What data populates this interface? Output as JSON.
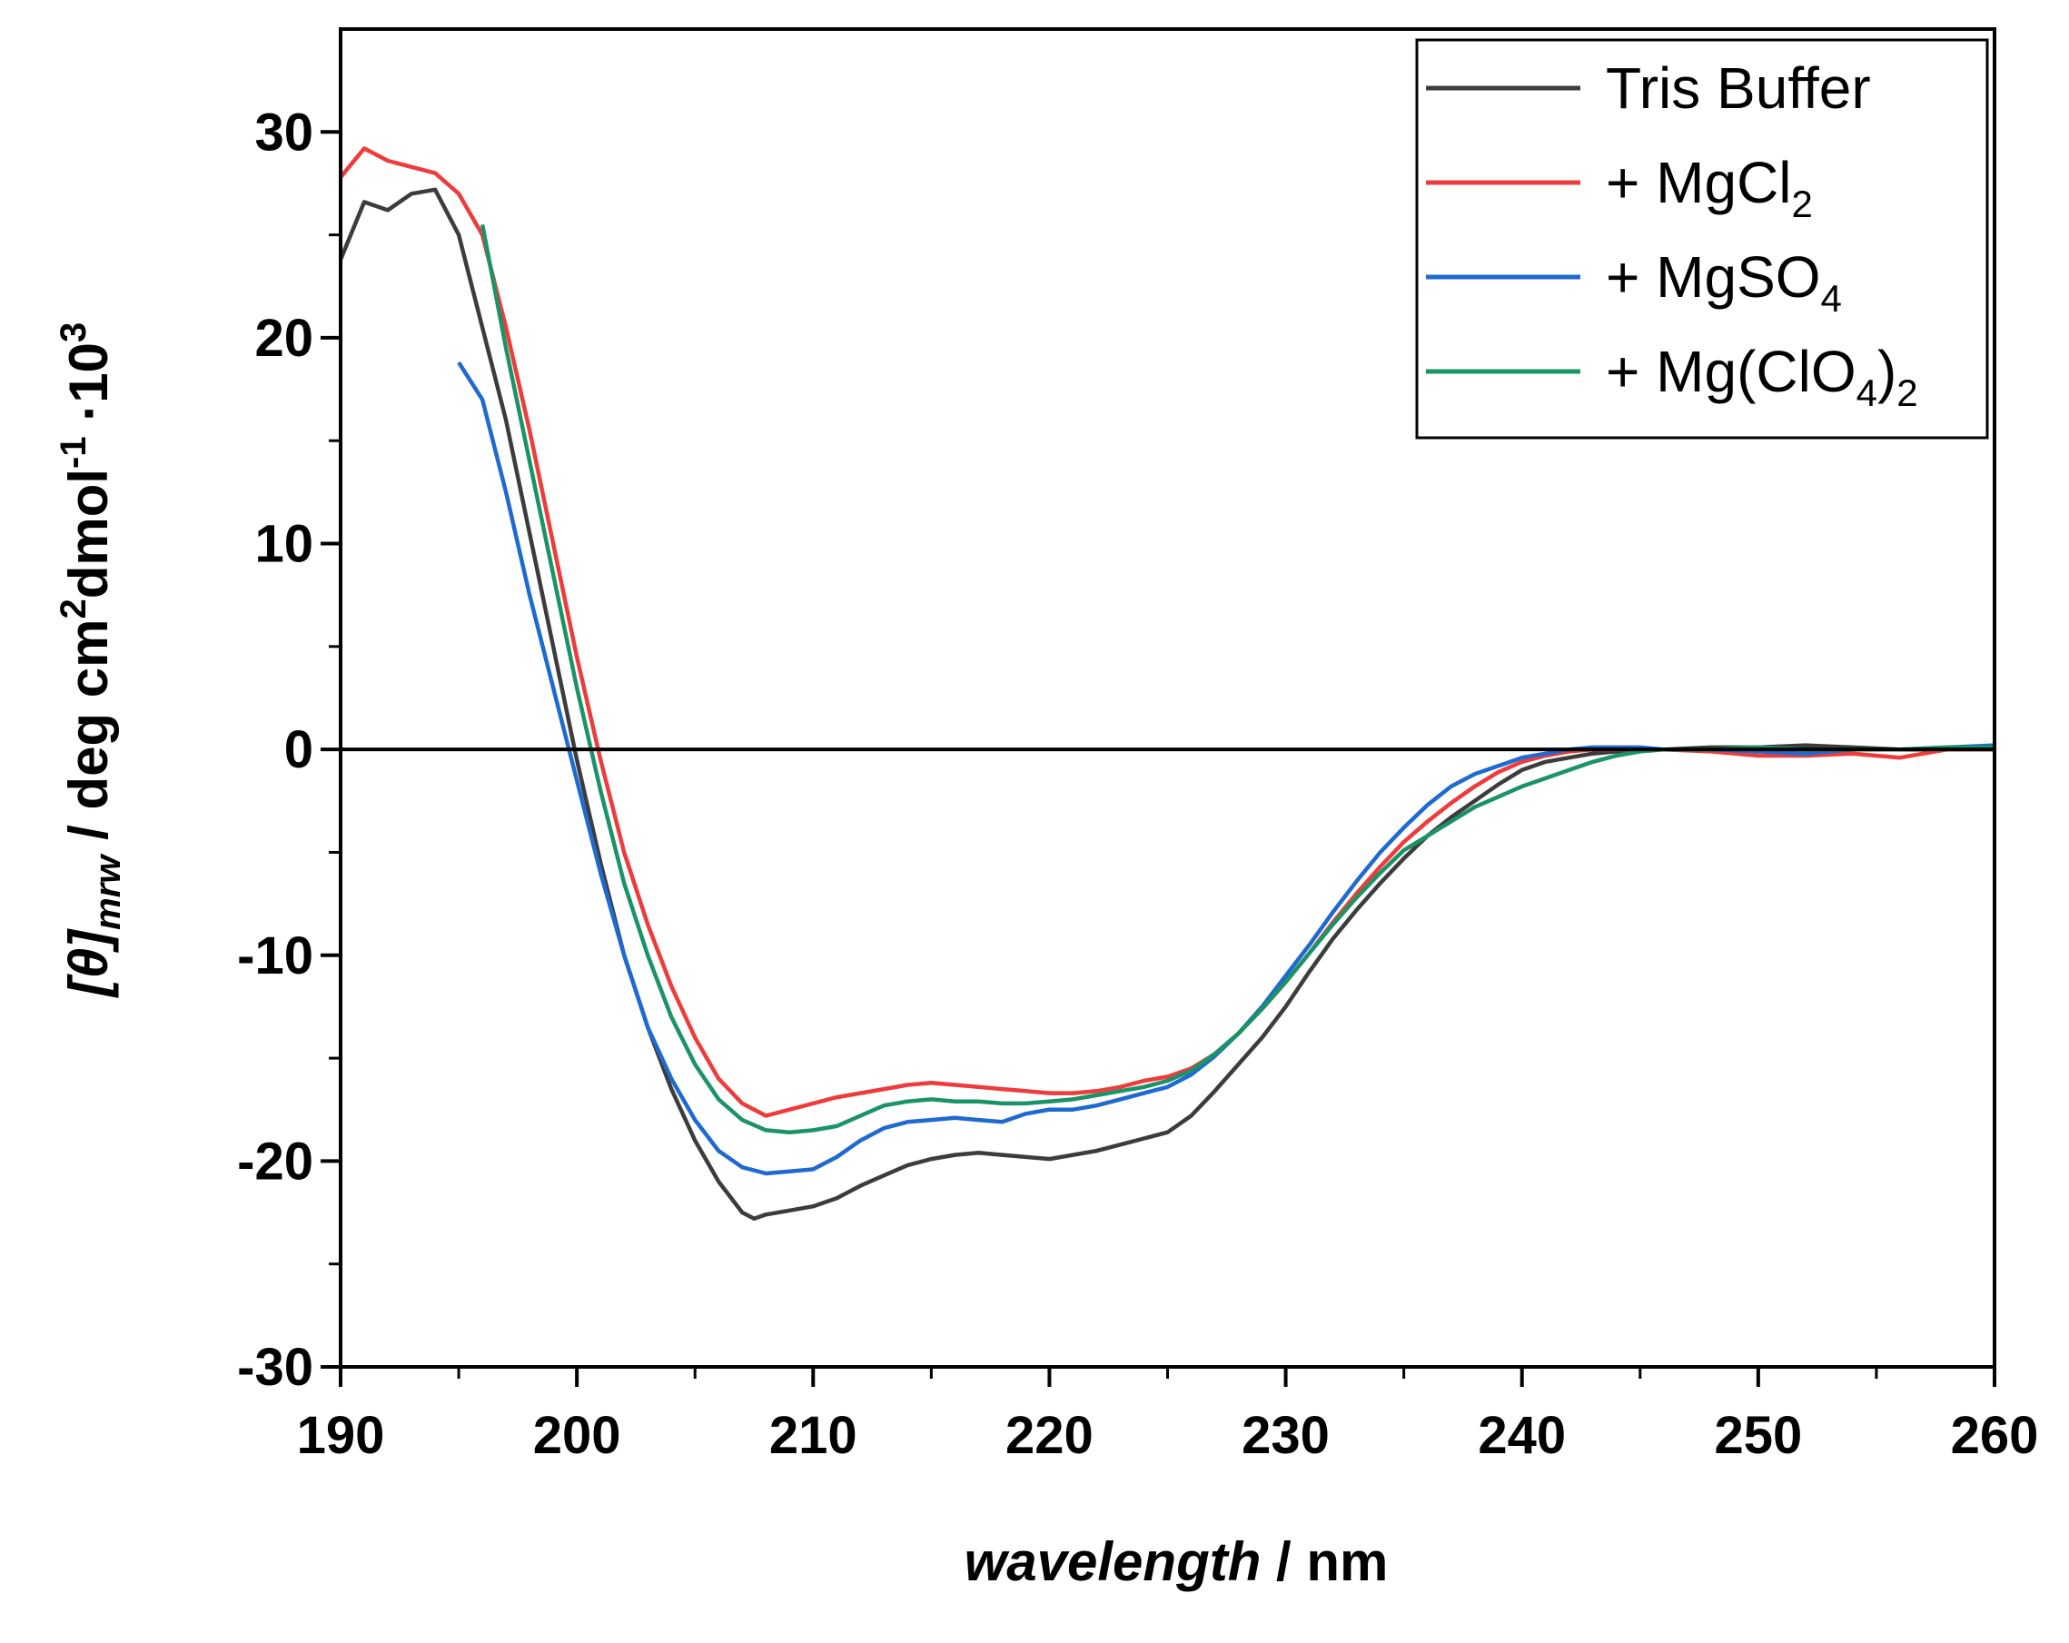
{
  "chart_data": {
    "type": "line",
    "title": "",
    "xlabel": {
      "italic": "wavelength",
      "rest": " / nm"
    },
    "ylabel": {
      "theta": "[θ]",
      "sub": "mrw",
      "rest1": " / deg cm",
      "sup1": "2",
      "rest2": "dmol",
      "sup2": "-1",
      "rest3": " ·10",
      "sup3": "3"
    },
    "xlim": [
      190,
      260
    ],
    "ylim": [
      -30,
      35
    ],
    "xticks": [
      190,
      200,
      210,
      220,
      230,
      240,
      250,
      260
    ],
    "yticks": [
      -30,
      -20,
      -10,
      0,
      10,
      20,
      30
    ],
    "zero_line": true,
    "legend_position": "top-right",
    "series": [
      {
        "name": "Tris Buffer",
        "legend_parts": [
          {
            "t": "Tris Buffer"
          }
        ],
        "color": "#3c3c3c",
        "x": [
          190,
          191,
          192,
          193,
          194,
          195,
          196,
          197,
          198,
          199,
          200,
          201,
          202,
          203,
          204,
          205,
          206,
          207,
          207.5,
          208,
          209,
          210,
          211,
          212,
          213,
          214,
          215,
          216,
          217,
          218,
          219,
          220,
          221,
          222,
          223,
          224,
          225,
          226,
          227,
          228,
          229,
          230,
          231,
          232,
          233,
          234,
          235,
          236,
          237,
          238,
          239,
          240,
          241,
          242,
          243,
          244,
          245,
          246,
          248,
          250,
          252,
          254,
          256,
          258,
          260
        ],
        "y": [
          23.8,
          26.6,
          26.2,
          27.0,
          27.2,
          25.0,
          20.5,
          16.0,
          10.5,
          5.0,
          -0.5,
          -5.5,
          -10.0,
          -13.5,
          -16.5,
          -19.0,
          -21.0,
          -22.5,
          -22.8,
          -22.6,
          -22.4,
          -22.2,
          -21.8,
          -21.2,
          -20.7,
          -20.2,
          -19.9,
          -19.7,
          -19.6,
          -19.7,
          -19.8,
          -19.9,
          -19.7,
          -19.5,
          -19.2,
          -18.9,
          -18.6,
          -17.8,
          -16.6,
          -15.3,
          -14.0,
          -12.5,
          -10.8,
          -9.2,
          -7.8,
          -6.5,
          -5.3,
          -4.2,
          -3.3,
          -2.5,
          -1.7,
          -1.0,
          -0.6,
          -0.4,
          -0.2,
          -0.1,
          0.0,
          0.0,
          0.1,
          0.1,
          0.2,
          0.1,
          0.0,
          0.0,
          0.1
        ]
      },
      {
        "name": "+ MgCl2",
        "legend_parts": [
          {
            "t": "+ MgCl"
          },
          {
            "sub": "2"
          }
        ],
        "color": "#ee3b3b",
        "x": [
          190,
          191,
          192,
          193,
          194,
          195,
          196,
          197,
          198,
          199,
          200,
          201,
          202,
          203,
          204,
          205,
          206,
          207,
          208,
          209,
          210,
          211,
          212,
          213,
          214,
          215,
          216,
          217,
          218,
          219,
          220,
          221,
          222,
          223,
          224,
          225,
          226,
          227,
          228,
          229,
          230,
          231,
          232,
          233,
          234,
          235,
          236,
          237,
          238,
          239,
          240,
          241,
          242,
          243,
          244,
          245,
          246,
          248,
          250,
          252,
          254,
          256,
          258,
          260
        ],
        "y": [
          27.8,
          29.2,
          28.6,
          28.3,
          28.0,
          27.0,
          25.0,
          20.5,
          15.5,
          10.0,
          4.5,
          -0.5,
          -5.0,
          -8.5,
          -11.5,
          -14.0,
          -16.0,
          -17.2,
          -17.8,
          -17.5,
          -17.2,
          -16.9,
          -16.7,
          -16.5,
          -16.3,
          -16.2,
          -16.3,
          -16.4,
          -16.5,
          -16.6,
          -16.7,
          -16.7,
          -16.6,
          -16.4,
          -16.1,
          -15.9,
          -15.5,
          -14.8,
          -13.8,
          -12.6,
          -11.3,
          -9.9,
          -8.4,
          -7.0,
          -5.7,
          -4.5,
          -3.5,
          -2.6,
          -1.8,
          -1.1,
          -0.6,
          -0.3,
          -0.1,
          0.0,
          0.0,
          0.0,
          0.0,
          -0.1,
          -0.3,
          -0.3,
          -0.2,
          -0.4,
          0.0,
          0.0
        ]
      },
      {
        "name": "+ MgSO4",
        "legend_parts": [
          {
            "t": "+ MgSO"
          },
          {
            "sub": "4"
          }
        ],
        "color": "#1f6ad1",
        "x": [
          195,
          196,
          197,
          198,
          199,
          200,
          201,
          202,
          203,
          204,
          205,
          206,
          207,
          208,
          209,
          210,
          211,
          212,
          213,
          214,
          215,
          216,
          217,
          218,
          219,
          220,
          221,
          222,
          223,
          224,
          225,
          226,
          227,
          228,
          229,
          230,
          231,
          232,
          233,
          234,
          235,
          236,
          237,
          238,
          239,
          240,
          241,
          242,
          243,
          244,
          245,
          246,
          248,
          250,
          252,
          254,
          256,
          258,
          260
        ],
        "y": [
          18.8,
          17.0,
          12.5,
          7.5,
          3.0,
          -1.5,
          -6.0,
          -10.0,
          -13.5,
          -16.0,
          -18.0,
          -19.5,
          -20.3,
          -20.6,
          -20.5,
          -20.4,
          -19.8,
          -19.0,
          -18.4,
          -18.1,
          -18.0,
          -17.9,
          -18.0,
          -18.1,
          -17.7,
          -17.5,
          -17.5,
          -17.3,
          -17.0,
          -16.7,
          -16.4,
          -15.8,
          -14.9,
          -13.8,
          -12.5,
          -11.0,
          -9.5,
          -7.9,
          -6.4,
          -5.0,
          -3.8,
          -2.7,
          -1.8,
          -1.2,
          -0.8,
          -0.4,
          -0.2,
          0.0,
          0.1,
          0.1,
          0.1,
          0.0,
          0.0,
          -0.1,
          -0.2,
          0.0,
          0.0,
          0.1,
          0.2
        ]
      },
      {
        "name": "+ Mg(ClO4)2",
        "legend_parts": [
          {
            "t": "+ Mg(ClO"
          },
          {
            "sub": "4"
          },
          {
            "t": ")"
          },
          {
            "sub": "2"
          }
        ],
        "color": "#1a9466",
        "x": [
          196,
          197,
          198,
          199,
          200,
          201,
          202,
          203,
          204,
          205,
          206,
          207,
          208,
          209,
          210,
          211,
          212,
          213,
          214,
          215,
          216,
          217,
          218,
          219,
          220,
          221,
          222,
          223,
          224,
          225,
          226,
          227,
          228,
          229,
          230,
          231,
          232,
          233,
          234,
          235,
          236,
          237,
          238,
          239,
          240,
          241,
          242,
          243,
          244,
          245,
          246,
          248,
          250,
          252,
          254,
          256,
          258,
          260
        ],
        "y": [
          25.5,
          19.5,
          14.0,
          8.5,
          3.0,
          -2.0,
          -6.5,
          -10.0,
          -13.0,
          -15.3,
          -17.0,
          -18.0,
          -18.5,
          -18.6,
          -18.5,
          -18.3,
          -17.8,
          -17.3,
          -17.1,
          -17.0,
          -17.1,
          -17.1,
          -17.2,
          -17.2,
          -17.1,
          -17.0,
          -16.8,
          -16.6,
          -16.4,
          -16.1,
          -15.6,
          -14.8,
          -13.8,
          -12.6,
          -11.3,
          -9.9,
          -8.5,
          -7.2,
          -6.0,
          -4.9,
          -4.2,
          -3.5,
          -2.8,
          -2.3,
          -1.8,
          -1.4,
          -1.0,
          -0.6,
          -0.3,
          -0.1,
          0.0,
          0.0,
          0.1,
          0.0,
          0.0,
          0.0,
          0.1,
          0.1
        ]
      }
    ]
  }
}
